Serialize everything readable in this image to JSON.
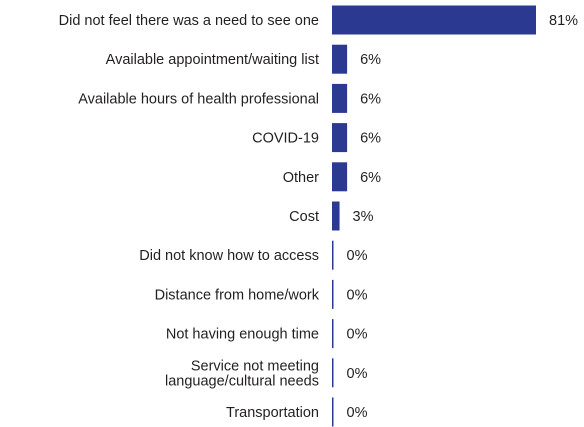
{
  "chart_data": {
    "type": "bar",
    "orientation": "horizontal",
    "title": "",
    "xlabel": "",
    "ylabel": "",
    "value_suffix": "%",
    "xlim": [
      0,
      81
    ],
    "grid": false,
    "legend": "none",
    "bar_color": "#2b3990",
    "categories": [
      [
        "Did not feel there was a need to see one"
      ],
      [
        "Available appointment/waiting list"
      ],
      [
        "Available hours of health professional"
      ],
      [
        "COVID-19"
      ],
      [
        "Other"
      ],
      [
        "Cost"
      ],
      [
        "Did not know how to access"
      ],
      [
        "Distance from home/work"
      ],
      [
        "Not having enough time"
      ],
      [
        "Service not meeting",
        "language/cultural needs"
      ],
      [
        "Transportation"
      ]
    ],
    "values": [
      81,
      6,
      6,
      6,
      6,
      3,
      0,
      0,
      0,
      0,
      0
    ]
  }
}
